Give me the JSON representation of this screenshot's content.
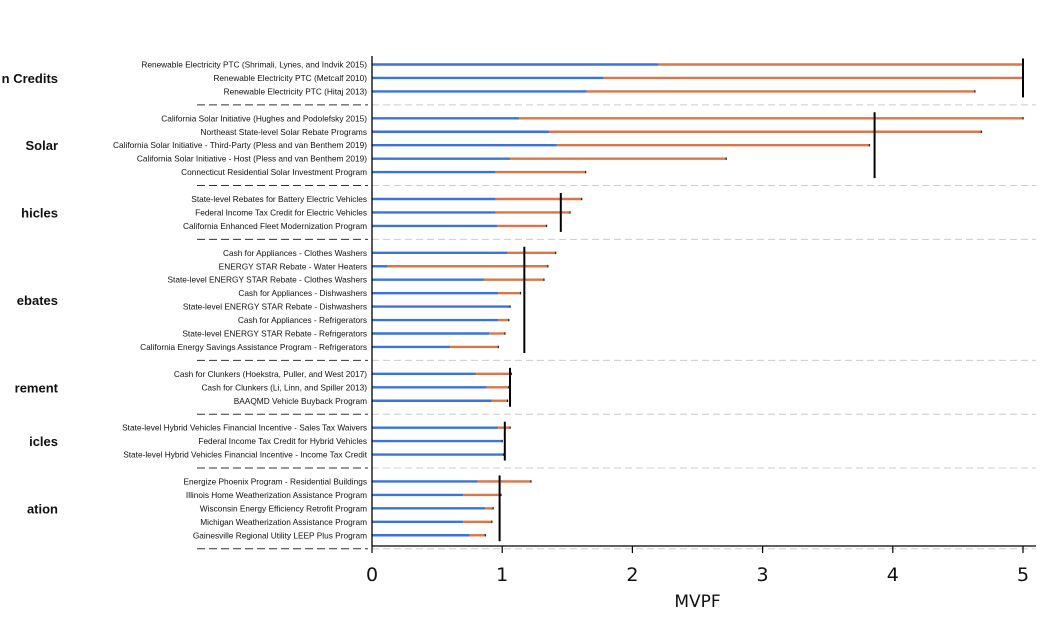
{
  "chart_data": {
    "type": "bar",
    "orientation": "horizontal",
    "xlabel": "MVPF",
    "xlim": [
      0,
      5
    ],
    "xticks": [
      0,
      1,
      2,
      3,
      4,
      5
    ],
    "grid": false,
    "colors": {
      "lower": "#3a74d9",
      "upper": "#d9774a",
      "group_mean": "#000000",
      "separator": "#cccccc",
      "divider": "#333333"
    },
    "groups": [
      {
        "label": "n Credits",
        "mean": 5.0,
        "programs": [
          {
            "name": "Renewable Electricity PTC (Shrimali, Lynes, and Indvik 2015)",
            "low": 2.2,
            "high": 5.0
          },
          {
            "name": "Renewable Electricity PTC (Metcalf 2010)",
            "low": 1.78,
            "high": 5.0
          },
          {
            "name": "Renewable Electricity PTC (Hitaj 2013)",
            "low": 1.65,
            "high": 4.63
          }
        ]
      },
      {
        "label": "Solar",
        "mean": 3.86,
        "programs": [
          {
            "name": "California Solar Initiative (Hughes and Podolefsky 2015)",
            "low": 1.13,
            "high": 5.0
          },
          {
            "name": "Northeast State-level Solar Rebate Programs",
            "low": 1.36,
            "high": 4.68
          },
          {
            "name": "California Solar Initiative - Third-Party (Pless and van Benthem 2019)",
            "low": 1.42,
            "high": 3.82
          },
          {
            "name": "California Solar Initiative - Host (Pless and van Benthem 2019)",
            "low": 1.06,
            "high": 2.72
          },
          {
            "name": "Connecticut Residential Solar Investment Program",
            "low": 0.95,
            "high": 1.64
          }
        ]
      },
      {
        "label": "hicles",
        "mean": 1.45,
        "programs": [
          {
            "name": "State-level Rebates for Battery Electric Vehicles",
            "low": 0.95,
            "high": 1.61
          },
          {
            "name": "Federal Income Tax Credit for Electric Vehicles",
            "low": 0.95,
            "high": 1.52
          },
          {
            "name": "California Enhanced Fleet Modernization Program",
            "low": 0.96,
            "high": 1.34
          }
        ]
      },
      {
        "label": "ebates",
        "mean": 1.17,
        "programs": [
          {
            "name": "Cash for Appliances - Clothes Washers",
            "low": 1.04,
            "high": 1.41
          },
          {
            "name": "ENERGY STAR Rebate - Water Heaters",
            "low": 0.12,
            "high": 1.35
          },
          {
            "name": "State-level ENERGY STAR Rebate - Clothes Washers",
            "low": 0.86,
            "high": 1.32
          },
          {
            "name": "Cash for Appliances - Dishwashers",
            "low": 0.97,
            "high": 1.14
          },
          {
            "name": "State-level ENERGY STAR Rebate - Dishwashers",
            "low": 1.06,
            "high": 1.06
          },
          {
            "name": "Cash for Appliances - Refrigerators",
            "low": 0.97,
            "high": 1.05
          },
          {
            "name": "State-level ENERGY STAR Rebate - Refrigerators",
            "low": 0.9,
            "high": 1.02
          },
          {
            "name": "California Energy Savings Assistance Program - Refrigerators",
            "low": 0.6,
            "high": 0.97
          }
        ]
      },
      {
        "label": "rement",
        "mean": 1.06,
        "programs": [
          {
            "name": "Cash for Clunkers (Hoekstra, Puller, and West 2017)",
            "low": 0.8,
            "high": 1.07
          },
          {
            "name": "Cash for Clunkers (Li, Linn, and Spiller 2013)",
            "low": 0.88,
            "high": 1.05
          },
          {
            "name": "BAAQMD Vehicle Buyback Program",
            "low": 0.92,
            "high": 1.04
          }
        ]
      },
      {
        "label": "icles",
        "mean": 1.02,
        "programs": [
          {
            "name": "State-level Hybrid Vehicles Financial Incentive - Sales Tax Waivers",
            "low": 0.97,
            "high": 1.06
          },
          {
            "name": "Federal Income Tax Credit for Hybrid Vehicles",
            "low": 1.0,
            "high": 1.0
          },
          {
            "name": "State-level Hybrid Vehicles Financial Incentive - Income Tax Credit",
            "low": 1.01,
            "high": 1.01
          }
        ]
      },
      {
        "label": "ation",
        "mean": 0.98,
        "programs": [
          {
            "name": "Energize Phoenix Program - Residential Buildings",
            "low": 0.81,
            "high": 1.22
          },
          {
            "name": "Illinois Home Weatherization Assistance Program",
            "low": 0.7,
            "high": 0.99
          },
          {
            "name": "Wisconsin Energy Efficiency Retrofit Program",
            "low": 0.87,
            "high": 0.93
          },
          {
            "name": "Michigan Weatherization Assistance Program",
            "low": 0.7,
            "high": 0.92
          },
          {
            "name": "Gainesville Regional Utility LEEP Plus Program",
            "low": 0.75,
            "high": 0.87
          }
        ]
      }
    ]
  }
}
